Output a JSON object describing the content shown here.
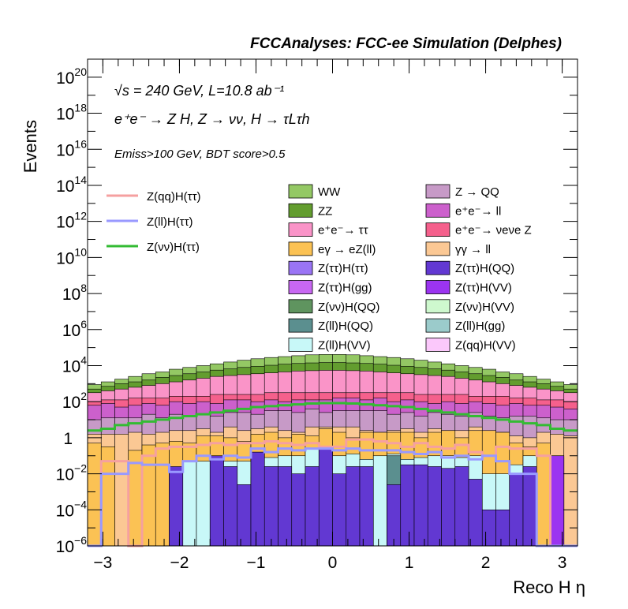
{
  "chart_data": {
    "type": "area",
    "title": "FCCAnalyses: FCC-ee Simulation (Delphes)",
    "xlabel": "Reco H η",
    "ylabel": "Events",
    "xlim": [
      -3.2,
      3.2
    ],
    "ylim_exponents": [
      -6,
      21
    ],
    "yscale": "log",
    "x_ticks": [
      "−3",
      "−2",
      "−1",
      "0",
      "1",
      "2",
      "3"
    ],
    "y_ticks": [
      {
        "base": "10",
        "exp": "−6",
        "value": 1e-06
      },
      {
        "base": "10",
        "exp": "−4",
        "value": 0.0001
      },
      {
        "base": "10",
        "exp": "−2",
        "value": 0.01
      },
      {
        "base": "1",
        "exp": "",
        "value": 1
      },
      {
        "base": "10",
        "exp": "2",
        "value": 100.0
      },
      {
        "base": "10",
        "exp": "4",
        "value": 10000.0
      },
      {
        "base": "10",
        "exp": "6",
        "value": 1000000.0
      },
      {
        "base": "10",
        "exp": "8",
        "value": 100000000.0
      },
      {
        "base": "10",
        "exp": "10",
        "value": 10000000000.0
      },
      {
        "base": "10",
        "exp": "12",
        "value": 1000000000000.0
      },
      {
        "base": "10",
        "exp": "14",
        "value": 100000000000000.0
      },
      {
        "base": "10",
        "exp": "16",
        "value": 1e+16
      },
      {
        "base": "10",
        "exp": "18",
        "value": 1e+18
      },
      {
        "base": "10",
        "exp": "20",
        "value": 1e+20
      }
    ],
    "annotations": [
      "√s = 240 GeV, L=10.8 ab⁻¹",
      "e⁺e⁻ → Z H, Z → νν, H → τLτh",
      "Emiss>100 GeV, BDT score>0.5"
    ],
    "legend_position": "top",
    "bin_edges_x": [
      -3.2,
      3.2
    ],
    "stack_totals_log10": [
      2.3,
      2.55,
      2.8,
      3.0,
      3.2,
      3.4,
      3.6,
      3.8,
      4.0,
      4.15,
      4.3,
      4.45,
      4.55,
      4.65,
      4.72,
      4.78,
      4.82,
      4.85,
      4.85,
      4.82,
      4.78,
      4.72,
      4.65,
      4.55,
      4.45,
      4.3,
      4.15,
      4.0,
      3.8,
      3.6,
      3.4,
      3.2,
      3.0,
      2.8,
      2.55,
      2.3
    ],
    "stack_layers": [
      {
        "name": "Z(ττ)H(QQ)",
        "color": "#6238d2",
        "log10_top": [
          -6,
          -6,
          -6,
          -6,
          -6,
          -6,
          -1.6,
          -6,
          -6,
          -1.0,
          -1.6,
          -2.6,
          -0.8,
          -1.6,
          -1.6,
          -2.0,
          -1.6,
          -0.6,
          -2.0,
          -1.6,
          -1.6,
          -6,
          -2.6,
          -1.5,
          -1.5,
          -1.6,
          -1.7,
          -1.6,
          -2.3,
          -4.0,
          -4.0,
          -2.0,
          -1.6,
          -6,
          -6,
          -6
        ]
      },
      {
        "name": "Z(ττ)H(VV)",
        "color": "#9b34f0",
        "log10_top": [
          -6,
          -6,
          -6,
          -6,
          -6,
          -6,
          -6,
          -6,
          -6,
          -6,
          -6,
          -6,
          -6,
          -6,
          -6,
          -6,
          -6,
          -6,
          -6,
          -6,
          -6,
          -6,
          -6,
          -6,
          -6,
          -6,
          -6,
          -6,
          -6,
          -6,
          -6,
          -6,
          -6,
          -6,
          -1.0,
          -6
        ]
      },
      {
        "name": "Z(ττ)H(gg)",
        "color": "#c867f2",
        "log10_top": [
          -6,
          -6,
          -6,
          -6,
          -6,
          -6,
          -6,
          -6,
          -6,
          -6,
          -6,
          -6,
          -2.2,
          -2.2,
          -2.2,
          -6,
          -6,
          -6,
          -6,
          -6,
          -6,
          -6,
          -6,
          -6,
          -6,
          -6,
          -6,
          -6,
          -6,
          -6,
          -6,
          -6,
          -6,
          -6,
          -1.0,
          -6
        ]
      },
      {
        "name": "Z(ll)H(QQ)",
        "color": "#5b8f8f",
        "log10_top": [
          -6,
          -6,
          -6,
          -6,
          -6,
          -6,
          -6,
          -6,
          -6,
          -6,
          -6,
          -6,
          -6,
          -6,
          -6,
          -6,
          -6,
          -6,
          -6,
          -6,
          -6,
          -6,
          -1.0,
          -6,
          -6,
          -6,
          -6,
          -6,
          -6,
          -6,
          -6,
          -6,
          -6,
          -6,
          -6,
          -6
        ]
      },
      {
        "name": "Z(ll)H(gg)",
        "color": "#9bcbcb",
        "log10_top": [
          -6,
          -6,
          -6,
          -6,
          -6,
          -6,
          -6,
          -6,
          -6,
          -6,
          -6,
          -6,
          -6,
          -6,
          -6,
          -6,
          -6,
          -6,
          -6,
          -6,
          -6,
          -6,
          -6,
          -2.0,
          -6,
          -6,
          -6,
          -6,
          -6,
          -6,
          -6,
          -6,
          -6,
          -6,
          -6,
          -6
        ]
      },
      {
        "name": "Z(ll)H(VV)",
        "color": "#c8f8f8",
        "log10_top": [
          -6,
          -6,
          -6,
          -6,
          -6,
          -6,
          -6,
          -1.3,
          -1.3,
          -1.0,
          -1.3,
          -1.3,
          -0.8,
          -1.1,
          -1.0,
          -1.0,
          -0.6,
          -0.5,
          -1.0,
          -0.9,
          -1.2,
          -1.0,
          -0.9,
          -1.2,
          -1.1,
          -1.0,
          -1.0,
          -1.1,
          -1.0,
          -2.0,
          -2.0,
          -1.5,
          -1.0,
          -6,
          -6,
          -6
        ]
      },
      {
        "name": "eγ → eZ(ll)",
        "color": "#fbc254",
        "log10_top": [
          -0.3,
          -0.5,
          -6,
          -0.7,
          -0.4,
          -0.3,
          -0.2,
          -0.3,
          0.1,
          0.1,
          0.0,
          -0.2,
          0.2,
          0.3,
          0.0,
          0.2,
          0.1,
          0.5,
          0.3,
          0.0,
          0.3,
          0.3,
          0.3,
          0.3,
          0.0,
          0.3,
          0.4,
          0.0,
          0.4,
          0.4,
          0.3,
          -0.3,
          -0.5,
          -0.3,
          -1.1,
          -6
        ]
      },
      {
        "name": "γγ → ll",
        "color": "#fbc894",
        "log10_top": [
          0.2,
          0.2,
          0.2,
          0.3,
          0.2,
          0.3,
          0.4,
          0.4,
          0.5,
          0.3,
          0.6,
          0.4,
          0.5,
          0.6,
          0.4,
          0.3,
          0.6,
          0.6,
          0.6,
          0.6,
          0.4,
          0.3,
          0.4,
          0.5,
          0.3,
          0.5,
          0.4,
          0.4,
          0.6,
          0.3,
          0.3,
          0.1,
          0.0,
          0.3,
          0.2,
          0.1
        ]
      },
      {
        "name": "Z → QQ",
        "color": "#c79ac7",
        "log10_top": [
          1.0,
          1.1,
          1.1,
          1.1,
          1.3,
          1.1,
          1.3,
          1.2,
          1.3,
          1.2,
          1.4,
          1.4,
          1.3,
          1.5,
          1.5,
          1.4,
          1.6,
          1.4,
          1.5,
          1.5,
          1.5,
          1.5,
          1.3,
          1.4,
          1.2,
          1.4,
          1.3,
          1.2,
          1.4,
          1.2,
          1.1,
          1.2,
          1.2,
          1.1,
          1.0,
          1.0
        ]
      },
      {
        "name": "e⁺e⁻→ ll",
        "color": "#cc60cc",
        "log10_top": [
          1.8,
          1.9,
          1.7,
          1.8,
          1.9,
          1.8,
          2.0,
          1.9,
          2.0,
          1.9,
          2.1,
          2.1,
          2.0,
          2.1,
          2.0,
          2.1,
          2.1,
          2.1,
          2.2,
          2.2,
          2.1,
          2.2,
          2.0,
          2.1,
          2.0,
          1.9,
          2.0,
          1.9,
          2.0,
          1.9,
          1.8,
          1.9,
          1.8,
          1.8,
          1.7,
          1.6
        ]
      },
      {
        "name": "e⁺e⁻→ νeνe Z",
        "color": "#f5608c",
        "log10_top": [
          2.0,
          2.1,
          2.1,
          2.2,
          2.2,
          2.2,
          2.3,
          2.3,
          2.3,
          2.4,
          2.4,
          2.4,
          2.4,
          2.5,
          2.5,
          2.5,
          2.5,
          2.5,
          2.5,
          2.5,
          2.5,
          2.5,
          2.5,
          2.5,
          2.4,
          2.4,
          2.4,
          2.4,
          2.3,
          2.3,
          2.3,
          2.2,
          2.2,
          2.1,
          2.1,
          2.0
        ]
      },
      {
        "name": "e⁺e⁻→ ττ",
        "color": "#fa94c8",
        "log10_top": [
          2.5,
          2.6,
          2.7,
          2.8,
          2.9,
          3.0,
          3.1,
          3.2,
          3.3,
          3.4,
          3.45,
          3.5,
          3.55,
          3.6,
          3.65,
          3.7,
          3.72,
          3.74,
          3.74,
          3.72,
          3.7,
          3.65,
          3.6,
          3.55,
          3.5,
          3.45,
          3.4,
          3.3,
          3.2,
          3.1,
          3.0,
          2.9,
          2.8,
          2.7,
          2.6,
          2.5
        ]
      },
      {
        "name": "ZZ",
        "color": "#639d2f",
        "log10_top": [
          2.7,
          2.85,
          3.0,
          3.1,
          3.2,
          3.35,
          3.45,
          3.55,
          3.65,
          3.75,
          3.82,
          3.9,
          3.96,
          4.02,
          4.08,
          4.12,
          4.15,
          4.17,
          4.17,
          4.15,
          4.12,
          4.08,
          4.02,
          3.96,
          3.9,
          3.82,
          3.75,
          3.65,
          3.55,
          3.45,
          3.35,
          3.2,
          3.1,
          3.0,
          2.85,
          2.7
        ]
      },
      {
        "name": "WW",
        "color": "#94c864",
        "log10_top": [
          2.95,
          3.1,
          3.25,
          3.4,
          3.55,
          3.65,
          3.8,
          3.9,
          4.0,
          4.1,
          4.2,
          4.3,
          4.38,
          4.45,
          4.5,
          4.55,
          4.6,
          4.62,
          4.62,
          4.6,
          4.55,
          4.5,
          4.45,
          4.38,
          4.3,
          4.2,
          4.1,
          4.0,
          3.9,
          3.8,
          3.65,
          3.55,
          3.4,
          3.25,
          3.1,
          2.95
        ]
      }
    ],
    "series": [
      {
        "name": "Z(qq)H(ττ)",
        "color": "#f5a0a0",
        "log10": [
          -6,
          -1.3,
          -1.3,
          -6,
          -1.0,
          -0.6,
          -0.5,
          -0.5,
          -0.4,
          -0.3,
          -0.4,
          -0.3,
          -0.3,
          -0.2,
          -0.3,
          -0.4,
          -0.3,
          -0.5,
          -0.5,
          -0.1,
          -0.1,
          -0.2,
          -0.3,
          -0.5,
          -0.3,
          -0.5,
          -0.6,
          -0.4,
          -0.8,
          -1.0,
          -0.5,
          -0.6,
          -0.6,
          -1.0,
          -6,
          -6
        ]
      },
      {
        "name": "Z(ll)H(ττ)",
        "color": "#9999ff",
        "log10": [
          -6,
          -2.0,
          -2.0,
          -1.4,
          -1.5,
          -1.5,
          -1.9,
          -1.3,
          -1.0,
          -1.2,
          -1.0,
          -1.1,
          -0.6,
          -0.8,
          -0.6,
          -0.7,
          -0.6,
          -0.6,
          -0.7,
          -0.6,
          -0.7,
          -0.7,
          -0.7,
          -0.8,
          -0.9,
          -0.8,
          -1.1,
          -1.0,
          -1.2,
          -1.0,
          -1.3,
          -2.0,
          -2.0,
          -6,
          -6,
          -6
        ]
      },
      {
        "name": "Z(νν)H(ττ)",
        "color": "#33bb33",
        "log10": [
          0.4,
          0.5,
          0.7,
          0.8,
          0.9,
          1.0,
          1.1,
          1.2,
          1.3,
          1.4,
          1.5,
          1.6,
          1.7,
          1.75,
          1.8,
          1.85,
          1.9,
          1.92,
          1.92,
          1.9,
          1.85,
          1.8,
          1.75,
          1.7,
          1.6,
          1.5,
          1.4,
          1.3,
          1.2,
          1.1,
          1.0,
          0.9,
          0.8,
          0.7,
          0.5,
          0.4
        ]
      }
    ],
    "legend_left": [
      "Z(qq)H(ττ)",
      "Z(ll)H(ττ)",
      "Z(νν)H(ττ)"
    ],
    "legend_stack": [
      {
        "name": "WW",
        "color": "#94c864"
      },
      {
        "name": "Z → QQ",
        "color": "#c79ac7"
      },
      {
        "name": "ZZ",
        "color": "#639d2f"
      },
      {
        "name": "e⁺e⁻→ ll",
        "color": "#cc60cc"
      },
      {
        "name": "e⁺e⁻→ ττ",
        "color": "#fa94c8"
      },
      {
        "name": "e⁺e⁻→ νeνe Z",
        "color": "#f5608c"
      },
      {
        "name": "eγ → eZ(ll)",
        "color": "#fbc254"
      },
      {
        "name": "γγ → ll",
        "color": "#fbc894"
      },
      {
        "name": "Z(ττ)H(ττ)",
        "color": "#9a74f5"
      },
      {
        "name": "Z(ττ)H(QQ)",
        "color": "#6238d2"
      },
      {
        "name": "Z(ττ)H(gg)",
        "color": "#c867f2"
      },
      {
        "name": "Z(ττ)H(VV)",
        "color": "#9b34f0"
      },
      {
        "name": "Z(νν)H(QQ)",
        "color": "#5f945f"
      },
      {
        "name": "Z(νν)H(VV)",
        "color": "#cef8ce"
      },
      {
        "name": "Z(ll)H(QQ)",
        "color": "#5b8f8f"
      },
      {
        "name": "Z(ll)H(gg)",
        "color": "#9bcbcb"
      },
      {
        "name": "Z(ll)H(VV)",
        "color": "#c8f8f8"
      },
      {
        "name": "Z(qq)H(VV)",
        "color": "#fbc8fb"
      }
    ]
  }
}
